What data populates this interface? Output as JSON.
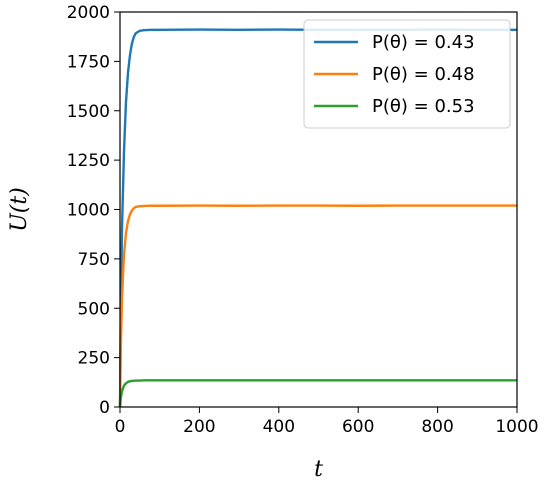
{
  "chart_data": {
    "type": "line",
    "title": "",
    "xlabel": "t",
    "ylabel": "U(t)",
    "xlim": [
      0,
      1000
    ],
    "ylim": [
      0,
      2000
    ],
    "xticks": [
      0,
      200,
      400,
      600,
      800,
      1000
    ],
    "yticks": [
      0,
      250,
      500,
      750,
      1000,
      1250,
      1500,
      1750,
      2000
    ],
    "grid": false,
    "legend_position": "top-right",
    "series": [
      {
        "name": "P(θ) = 0.43",
        "color": "#1f77b4",
        "x": [
          0,
          2,
          5,
          10,
          15,
          20,
          25,
          30,
          35,
          40,
          50,
          60,
          80,
          100,
          200,
          300,
          400,
          500,
          600,
          700,
          800,
          900,
          1000
        ],
        "y": [
          0,
          480,
          900,
          1290,
          1540,
          1690,
          1780,
          1840,
          1875,
          1893,
          1905,
          1908,
          1910,
          1910,
          1911,
          1910,
          1911,
          1910,
          1910,
          1910,
          1911,
          1910,
          1910
        ]
      },
      {
        "name": "P(θ) = 0.48",
        "color": "#ff7f0e",
        "x": [
          0,
          2,
          5,
          10,
          15,
          20,
          25,
          30,
          35,
          40,
          50,
          60,
          80,
          100,
          200,
          300,
          400,
          500,
          600,
          700,
          800,
          900,
          1000
        ],
        "y": [
          0,
          300,
          550,
          770,
          880,
          940,
          975,
          995,
          1007,
          1013,
          1017,
          1018,
          1019,
          1019,
          1020,
          1019,
          1020,
          1020,
          1019,
          1020,
          1020,
          1020,
          1020
        ]
      },
      {
        "name": "P(θ) = 0.53",
        "color": "#2ca02c",
        "x": [
          0,
          2,
          5,
          10,
          15,
          20,
          25,
          30,
          40,
          50,
          60,
          80,
          100,
          200,
          300,
          400,
          500,
          600,
          700,
          800,
          900,
          1000
        ],
        "y": [
          0,
          45,
          80,
          108,
          120,
          127,
          130,
          132,
          134,
          134,
          135,
          135,
          135,
          135,
          135,
          135,
          135,
          135,
          135,
          135,
          135,
          135
        ]
      }
    ]
  }
}
